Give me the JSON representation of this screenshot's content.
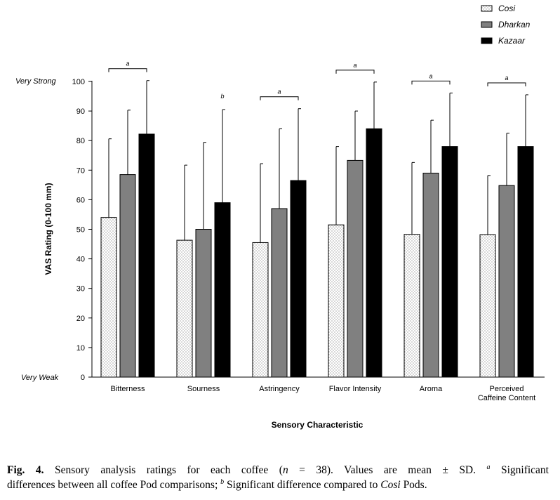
{
  "chart_data": {
    "type": "bar",
    "xlabel": "Sensory Characteristic",
    "ylabel": "VAS Rating (0-100 mm)",
    "ylim": [
      0,
      100
    ],
    "yticks": [
      0,
      10,
      20,
      30,
      40,
      50,
      60,
      70,
      80,
      90,
      100
    ],
    "anchor_labels": {
      "top": "Very Strong",
      "bottom": "Very Weak"
    },
    "grid": false,
    "legend": {
      "placement": "top-right"
    },
    "categories": [
      "Bitterness",
      "Sourness",
      "Astringency",
      "Flavor Intensity",
      "Aroma",
      "Perceived Caffeine Content"
    ],
    "series": [
      {
        "name": "Cosi",
        "color": "#ffffff",
        "pattern": "dotted",
        "values": [
          54,
          46.3,
          45.5,
          51.5,
          48.3,
          48.2
        ],
        "sd": [
          26.6,
          25.4,
          26.7,
          26.5,
          24.3,
          20
        ]
      },
      {
        "name": "Dharkan",
        "color": "#808080",
        "pattern": "solid",
        "values": [
          68.5,
          50,
          57,
          73.3,
          69,
          64.8
        ],
        "sd": [
          21.8,
          29.4,
          27,
          16.7,
          17.9,
          17.7
        ]
      },
      {
        "name": "Kazaar",
        "color": "#000000",
        "pattern": "solid",
        "values": [
          82.2,
          59,
          66.5,
          84,
          78,
          78
        ],
        "sd": [
          18.1,
          31.5,
          24.3,
          15.8,
          18.1,
          17.5
        ]
      }
    ],
    "annotations": [
      {
        "category": "Bitterness",
        "label": "a",
        "type": "bracket"
      },
      {
        "category": "Sourness",
        "label": "b",
        "type": "marker",
        "series": "Kazaar"
      },
      {
        "category": "Astringency",
        "label": "a",
        "type": "bracket"
      },
      {
        "category": "Flavor Intensity",
        "label": "a",
        "type": "bracket"
      },
      {
        "category": "Aroma",
        "label": "a",
        "type": "bracket"
      },
      {
        "category": "Perceived Caffeine Content",
        "label": "a",
        "type": "bracket"
      }
    ]
  },
  "caption": {
    "fig_label": "Fig. 4.",
    "text_1": " Sensory analysis ratings for each coffee (",
    "n_symbol": "n",
    "text_2": " = 38). Values are mean ± SD. ",
    "sup_a": "a",
    "text_3": " Significant",
    "text_4": "differences between all coffee Pod comparisons; ",
    "sup_b": "b",
    "text_5": " Significant difference compared to ",
    "cosi": "Cosi",
    "text_6": " Pods."
  }
}
